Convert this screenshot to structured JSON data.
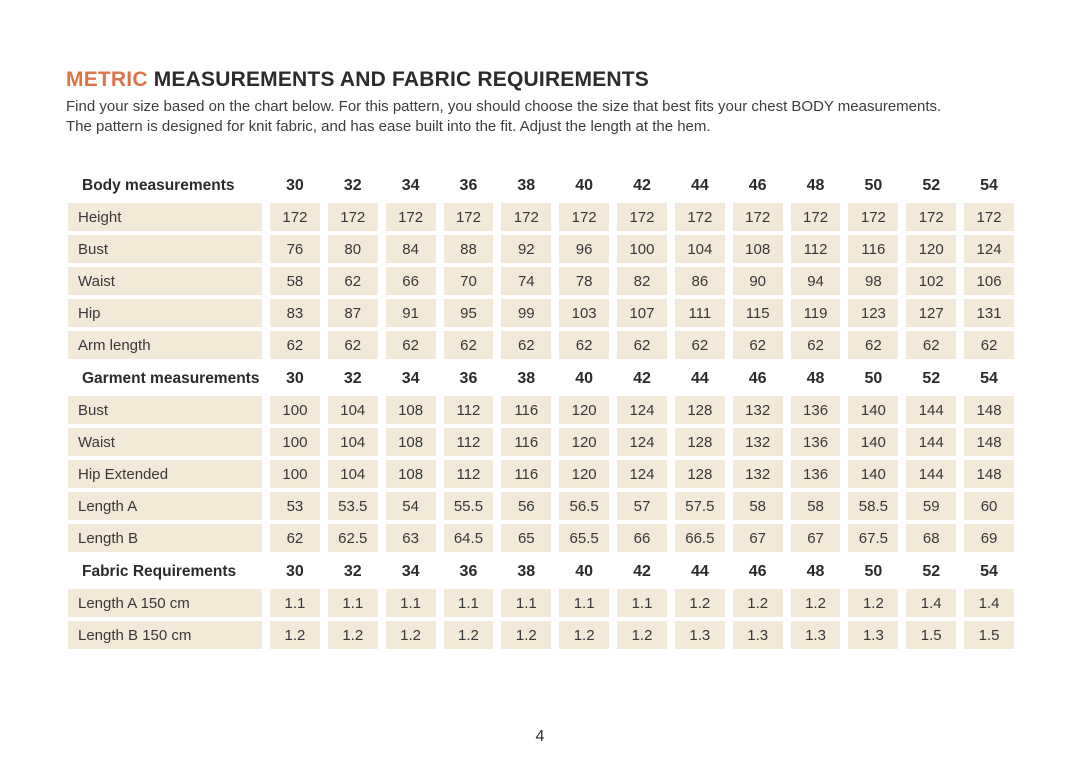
{
  "colors": {
    "accent": "#dc744a",
    "cell_bg": "#f2e9d8",
    "title_text": "#2b2b2b",
    "body_text": "#3d3d3d"
  },
  "header": {
    "title_accent": "METRIC",
    "title_rest": " MEASUREMENTS AND FABRIC REQUIREMENTS",
    "intro_line1": "Find your size based on the chart below. For this pattern, you should choose the size that best fits your chest BODY measurements.",
    "intro_line2": "The pattern is designed for knit fabric, and has ease built into the fit.  Adjust the length at the hem."
  },
  "table": {
    "sizes": [
      "30",
      "32",
      "34",
      "36",
      "38",
      "40",
      "42",
      "44",
      "46",
      "48",
      "50",
      "52",
      "54"
    ],
    "sections": [
      {
        "header": "Body measurements",
        "rows": [
          {
            "label": "Height",
            "values": [
              "172",
              "172",
              "172",
              "172",
              "172",
              "172",
              "172",
              "172",
              "172",
              "172",
              "172",
              "172",
              "172"
            ]
          },
          {
            "label": "Bust",
            "values": [
              "76",
              "80",
              "84",
              "88",
              "92",
              "96",
              "100",
              "104",
              "108",
              "112",
              "116",
              "120",
              "124"
            ]
          },
          {
            "label": "Waist",
            "values": [
              "58",
              "62",
              "66",
              "70",
              "74",
              "78",
              "82",
              "86",
              "90",
              "94",
              "98",
              "102",
              "106"
            ]
          },
          {
            "label": "Hip",
            "values": [
              "83",
              "87",
              "91",
              "95",
              "99",
              "103",
              "107",
              "111",
              "115",
              "119",
              "123",
              "127",
              "131"
            ]
          },
          {
            "label": "Arm length",
            "values": [
              "62",
              "62",
              "62",
              "62",
              "62",
              "62",
              "62",
              "62",
              "62",
              "62",
              "62",
              "62",
              "62"
            ]
          }
        ]
      },
      {
        "header": "Garment measurements",
        "rows": [
          {
            "label": "Bust",
            "values": [
              "100",
              "104",
              "108",
              "112",
              "116",
              "120",
              "124",
              "128",
              "132",
              "136",
              "140",
              "144",
              "148"
            ]
          },
          {
            "label": "Waist",
            "values": [
              "100",
              "104",
              "108",
              "112",
              "116",
              "120",
              "124",
              "128",
              "132",
              "136",
              "140",
              "144",
              "148"
            ]
          },
          {
            "label": "Hip Extended",
            "values": [
              "100",
              "104",
              "108",
              "112",
              "116",
              "120",
              "124",
              "128",
              "132",
              "136",
              "140",
              "144",
              "148"
            ]
          },
          {
            "label": "Length A",
            "values": [
              "53",
              "53.5",
              "54",
              "55.5",
              "56",
              "56.5",
              "57",
              "57.5",
              "58",
              "58",
              "58.5",
              "59",
              "60"
            ]
          },
          {
            "label": "Length B",
            "values": [
              "62",
              "62.5",
              "63",
              "64.5",
              "65",
              "65.5",
              "66",
              "66.5",
              "67",
              "67",
              "67.5",
              "68",
              "69"
            ]
          }
        ]
      },
      {
        "header": "Fabric Requirements",
        "rows": [
          {
            "label": "Length A 150 cm",
            "values": [
              "1.1",
              "1.1",
              "1.1",
              "1.1",
              "1.1",
              "1.1",
              "1.1",
              "1.2",
              "1.2",
              "1.2",
              "1.2",
              "1.4",
              "1.4"
            ]
          },
          {
            "label": "Length B 150 cm",
            "values": [
              "1.2",
              "1.2",
              "1.2",
              "1.2",
              "1.2",
              "1.2",
              "1.2",
              "1.3",
              "1.3",
              "1.3",
              "1.3",
              "1.5",
              "1.5"
            ]
          }
        ]
      }
    ]
  },
  "footer": {
    "page_number": "4"
  }
}
